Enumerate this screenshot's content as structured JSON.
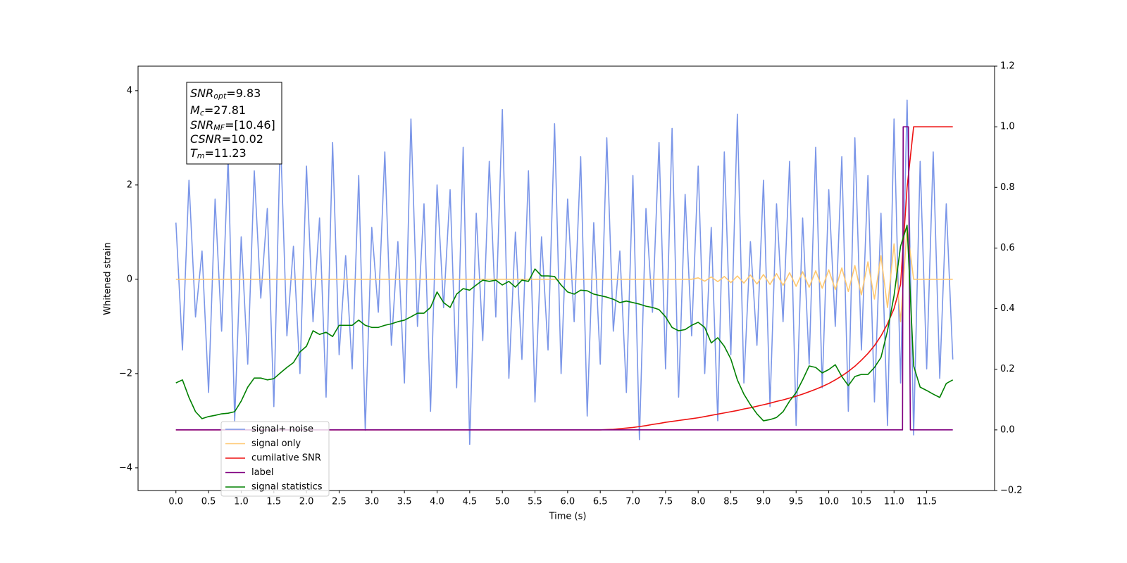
{
  "chart_data": {
    "type": "line",
    "xlabel": "Time (s)",
    "ylabel": "Whitened strain",
    "annotation": [
      [
        "SNR",
        "opt",
        "=9.83"
      ],
      [
        "M",
        "c",
        "=27.81"
      ],
      [
        "SNR",
        "MF",
        "=[10.46]"
      ],
      [
        "CSNR",
        null,
        "=10.02"
      ],
      [
        "T",
        "m",
        "=11.23"
      ]
    ],
    "legend": "lower left",
    "xlim": [
      -0.58,
      12.54
    ],
    "xticks": [
      {
        "value": 0,
        "label": "0.0"
      },
      0.5,
      {
        "value": 1,
        "label": "1.0"
      },
      1.5,
      {
        "value": 2,
        "label": "2.0"
      },
      2.5,
      {
        "value": 3,
        "label": "3.0"
      },
      3.5,
      {
        "value": 4,
        "label": "4.0"
      },
      4.5,
      {
        "value": 5,
        "label": "5.0"
      },
      5.5,
      {
        "value": 6,
        "label": "6.0"
      },
      6.5,
      {
        "value": 7,
        "label": "7.0"
      },
      7.5,
      {
        "value": 8,
        "label": "8.0"
      },
      8.5,
      {
        "value": 9,
        "label": "9.0"
      },
      9.5,
      {
        "value": 10,
        "label": "10.0"
      },
      10.5,
      {
        "value": 11,
        "label": "11.0"
      },
      11.5
    ],
    "ylim": [
      -4.48,
      4.52
    ],
    "yticks": [
      {
        "value": -4,
        "label": "−4"
      },
      {
        "value": -2,
        "label": "−2"
      },
      0,
      2,
      4
    ],
    "y2lim": [
      -0.2,
      1.2
    ],
    "y2ticks": [
      {
        "value": -0.2,
        "label": "−0.2"
      },
      {
        "value": 0,
        "label": "0.0"
      },
      0.2,
      0.4,
      0.6,
      0.8,
      {
        "value": 1,
        "label": "1.0"
      },
      1.2
    ],
    "x": [
      0,
      0.1,
      0.2,
      0.3,
      0.4,
      0.5,
      0.6,
      0.7,
      0.8,
      0.9,
      1,
      1.1,
      1.2,
      1.3,
      1.4,
      1.5,
      1.6,
      1.7,
      1.8,
      1.9,
      2,
      2.1,
      2.2,
      2.3,
      2.4,
      2.5,
      2.6,
      2.7,
      2.8,
      2.9,
      3,
      3.1,
      3.2,
      3.3,
      3.4,
      3.5,
      3.6,
      3.7,
      3.8,
      3.9,
      4,
      4.1,
      4.2,
      4.3,
      4.4,
      4.5,
      4.6,
      4.7,
      4.8,
      4.9,
      5,
      5.1,
      5.2,
      5.3,
      5.4,
      5.5,
      5.6,
      5.7,
      5.8,
      5.9,
      6,
      6.1,
      6.2,
      6.3,
      6.4,
      6.5,
      6.6,
      6.7,
      6.8,
      6.9,
      7,
      7.1,
      7.2,
      7.3,
      7.4,
      7.5,
      7.6,
      7.7,
      7.8,
      7.9,
      8,
      8.1,
      8.2,
      8.3,
      8.4,
      8.5,
      8.6,
      8.7,
      8.8,
      8.9,
      9,
      9.1,
      9.2,
      9.3,
      9.4,
      9.5,
      9.6,
      9.7,
      9.8,
      9.9,
      10,
      10.1,
      10.2,
      10.3,
      10.4,
      10.5,
      10.6,
      10.7,
      10.8,
      10.9,
      11,
      11.1,
      11.2,
      11.3,
      11.4,
      11.5,
      11.6,
      11.7,
      11.8,
      11.9
    ],
    "series": [
      {
        "name": "signal+ noise",
        "color": "#7b96e8",
        "axis": "y",
        "values": [
          1.2,
          -1.5,
          2.1,
          -0.8,
          0.6,
          -2.4,
          1.7,
          -1.1,
          2.6,
          -3.0,
          0.9,
          -1.8,
          2.3,
          -0.4,
          1.5,
          -2.7,
          3.1,
          -1.2,
          0.7,
          -2.0,
          2.4,
          -0.9,
          1.3,
          -2.5,
          2.9,
          -1.6,
          0.5,
          -1.9,
          2.2,
          -3.2,
          1.1,
          -0.7,
          2.7,
          -1.4,
          0.8,
          -2.2,
          3.4,
          -1.0,
          1.6,
          -2.8,
          2.0,
          -0.6,
          1.9,
          -2.3,
          2.8,
          -3.5,
          1.4,
          -1.3,
          2.5,
          -0.8,
          3.6,
          -2.1,
          1.0,
          -1.7,
          2.3,
          -2.6,
          0.9,
          -1.5,
          3.3,
          -2.0,
          1.7,
          -0.9,
          2.6,
          -2.9,
          1.2,
          -1.8,
          3.0,
          -1.1,
          0.6,
          -2.4,
          2.2,
          -3.4,
          1.5,
          -0.7,
          2.9,
          -1.9,
          3.2,
          -2.5,
          1.8,
          -1.2,
          2.4,
          -2.0,
          1.1,
          -3.0,
          2.7,
          -1.6,
          3.5,
          -2.2,
          0.8,
          -1.4,
          2.1,
          -2.7,
          1.6,
          -0.9,
          2.5,
          -3.1,
          1.3,
          -1.8,
          2.8,
          -2.3,
          1.9,
          -1.0,
          2.6,
          -2.8,
          3.0,
          -1.5,
          2.2,
          -2.6,
          1.4,
          -3.1,
          3.4,
          -2.2,
          3.8,
          -3.3,
          2.5,
          -1.9,
          2.7,
          -2.1,
          1.6,
          -1.7
        ]
      },
      {
        "name": "signal only",
        "color": "#ffc870",
        "axis": "y",
        "values": [
          0,
          0,
          0,
          0,
          0,
          0,
          0,
          0,
          0,
          0,
          0,
          0,
          0,
          0,
          0,
          0,
          0,
          0,
          0,
          0,
          0,
          0,
          0,
          0,
          0,
          0,
          0,
          0,
          0,
          0,
          0,
          0,
          0,
          0,
          0,
          0,
          0,
          0,
          0,
          0,
          0,
          0,
          0,
          0,
          0,
          0,
          0,
          0,
          0,
          0,
          0,
          0,
          0,
          0,
          0,
          0,
          0,
          0,
          0,
          0,
          0,
          0,
          0,
          0,
          0,
          0,
          0,
          0,
          0,
          0,
          0,
          0,
          0,
          0,
          0,
          0,
          0,
          0,
          0,
          0,
          0.03,
          -0.04,
          0.05,
          -0.05,
          0.06,
          -0.07,
          0.07,
          -0.08,
          0.09,
          -0.1,
          0.1,
          -0.11,
          0.12,
          -0.13,
          0.14,
          -0.15,
          0.16,
          -0.17,
          0.18,
          -0.19,
          0.2,
          -0.22,
          0.24,
          -0.26,
          0.29,
          -0.33,
          0.37,
          -0.42,
          0.5,
          -0.6,
          0.75,
          -0.9,
          1.1,
          0,
          0,
          0,
          0,
          0,
          0,
          0
        ]
      },
      {
        "name": "cumilative SNR",
        "color": "#ee1111",
        "axis": "y2",
        "values": [
          0,
          0,
          0,
          0,
          0,
          0,
          0,
          0,
          0,
          0,
          0,
          0,
          0,
          0,
          0,
          0,
          0,
          0,
          0,
          0,
          0,
          0,
          0,
          0,
          0,
          0,
          0,
          0,
          0,
          0,
          0,
          0,
          0,
          0,
          0,
          0,
          0,
          0,
          0,
          0,
          0,
          0,
          0,
          0,
          0,
          0,
          0,
          0,
          0,
          0,
          0,
          0,
          0,
          0,
          0,
          0,
          0,
          0,
          0,
          0,
          0,
          0,
          0,
          0,
          0,
          0,
          0.001,
          0.002,
          0.004,
          0.006,
          0.008,
          0.011,
          0.014,
          0.018,
          0.021,
          0.025,
          0.028,
          0.031,
          0.034,
          0.037,
          0.04,
          0.044,
          0.048,
          0.052,
          0.056,
          0.06,
          0.064,
          0.069,
          0.073,
          0.078,
          0.083,
          0.088,
          0.094,
          0.099,
          0.105,
          0.111,
          0.118,
          0.126,
          0.134,
          0.143,
          0.153,
          0.165,
          0.178,
          0.193,
          0.21,
          0.23,
          0.252,
          0.278,
          0.31,
          0.35,
          0.4,
          0.48,
          0.8,
          1.0,
          1.0,
          1.0,
          1.0,
          1.0,
          1.0,
          1.0
        ]
      },
      {
        "name": "label",
        "color": "purple",
        "axis": "y2",
        "x": [
          0,
          11.13,
          11.14,
          11.22,
          11.25,
          11.9
        ],
        "values": [
          0,
          0,
          1,
          1,
          0,
          0
        ]
      },
      {
        "name": "signal statistics",
        "color": "green",
        "axis": "y2",
        "values": [
          0.155,
          0.165,
          0.107,
          0.06,
          0.037,
          0.044,
          0.048,
          0.053,
          0.055,
          0.06,
          0.095,
          0.141,
          0.171,
          0.171,
          0.165,
          0.169,
          0.188,
          0.206,
          0.222,
          0.257,
          0.276,
          0.327,
          0.315,
          0.322,
          0.308,
          0.345,
          0.345,
          0.345,
          0.362,
          0.345,
          0.338,
          0.338,
          0.345,
          0.35,
          0.357,
          0.362,
          0.373,
          0.385,
          0.385,
          0.404,
          0.455,
          0.42,
          0.404,
          0.448,
          0.466,
          0.461,
          0.478,
          0.494,
          0.49,
          0.494,
          0.478,
          0.49,
          0.471,
          0.494,
          0.49,
          0.531,
          0.508,
          0.508,
          0.506,
          0.478,
          0.455,
          0.448,
          0.461,
          0.459,
          0.448,
          0.443,
          0.438,
          0.431,
          0.42,
          0.425,
          0.42,
          0.415,
          0.408,
          0.404,
          0.397,
          0.373,
          0.338,
          0.327,
          0.331,
          0.345,
          0.355,
          0.338,
          0.287,
          0.304,
          0.276,
          0.234,
          0.165,
          0.118,
          0.083,
          0.053,
          0.03,
          0.034,
          0.041,
          0.06,
          0.095,
          0.123,
          0.165,
          0.211,
          0.206,
          0.188,
          0.199,
          0.215,
          0.176,
          0.146,
          0.176,
          0.183,
          0.183,
          0.206,
          0.239,
          0.327,
          0.443,
          0.606,
          0.675,
          0.211,
          0.141,
          0.13,
          0.118,
          0.107,
          0.153,
          0.165
        ]
      }
    ]
  }
}
